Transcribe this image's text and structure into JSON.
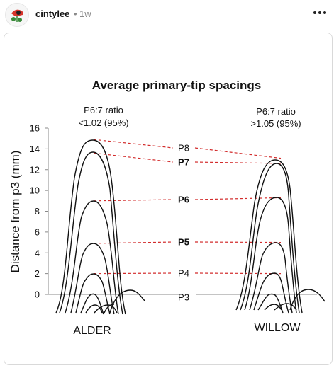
{
  "post": {
    "username": "cintylee",
    "separator": "•",
    "age": "1w",
    "more_icon": "ellipsis-icon",
    "avatar_icon": "flower-avatar-icon"
  },
  "figure": {
    "title": "Average primary-tip spacings",
    "alder_ratio_line1": "P6:7 ratio",
    "alder_ratio_line2": "<1.02 (95%)",
    "willow_ratio_line1": "P6:7 ratio",
    "willow_ratio_line2": ">1.05 (95%)",
    "left_label": "ALDER",
    "right_label": "WILLOW",
    "dash_color": "#d22b2b",
    "line_color": "#111111"
  },
  "chart_data": {
    "type": "line",
    "ylabel": "Distance from p3 (mm)",
    "ylim": [
      0,
      16
    ],
    "y_ticks": [
      0,
      2,
      4,
      6,
      8,
      10,
      12,
      14,
      16
    ],
    "feather_labels": [
      {
        "label": "P8",
        "bold": false,
        "alder_mm": 14.9,
        "willow_mm": 13.1
      },
      {
        "label": "P7",
        "bold": true,
        "alder_mm": 13.6,
        "willow_mm": 12.6
      },
      {
        "label": "P6",
        "bold": true,
        "alder_mm": 9.0,
        "willow_mm": 9.3
      },
      {
        "label": "P5",
        "bold": true,
        "alder_mm": 4.9,
        "willow_mm": 5.0
      },
      {
        "label": "P4",
        "bold": false,
        "alder_mm": 2.0,
        "willow_mm": 2.0
      },
      {
        "label": "P3",
        "bold": false,
        "alder_mm": 0.0,
        "willow_mm": 0.0
      }
    ]
  }
}
